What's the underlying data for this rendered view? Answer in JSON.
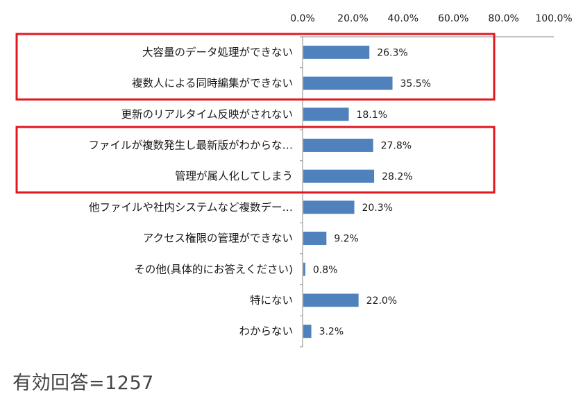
{
  "chart_data": {
    "type": "bar",
    "orientation": "horizontal",
    "categories": [
      "大容量のデータ処理ができない",
      "複数人による同時編集ができない",
      "更新のリアルタイム反映がされない",
      "ファイルが複数発生し最新版がわからな…",
      "管理が属人化してしまう",
      "他ファイルや社内システムなど複数デー…",
      "アクセス権限の管理ができない",
      "その他(具体的にお答えください)",
      "特にない",
      "わからない"
    ],
    "values": [
      26.3,
      35.5,
      18.1,
      27.8,
      28.2,
      20.3,
      9.2,
      0.8,
      22.0,
      3.2
    ],
    "value_labels": [
      "26.3%",
      "35.5%",
      "18.1%",
      "27.8%",
      "28.2%",
      "20.3%",
      "9.2%",
      "0.8%",
      "22.0%",
      "3.2%"
    ],
    "xlim": [
      0,
      100
    ],
    "x_ticks": [
      "0.0%",
      "20.0%",
      "40.0%",
      "60.0%",
      "80.0%",
      "100.0%"
    ],
    "x_axis_position": "top",
    "grid": false,
    "bar_color": "#4f81bd",
    "highlight_color": "#e0191f",
    "highlight_groups": [
      [
        0,
        1
      ],
      [
        3,
        4
      ]
    ]
  },
  "footer": {
    "text": "有効回答=1257"
  }
}
